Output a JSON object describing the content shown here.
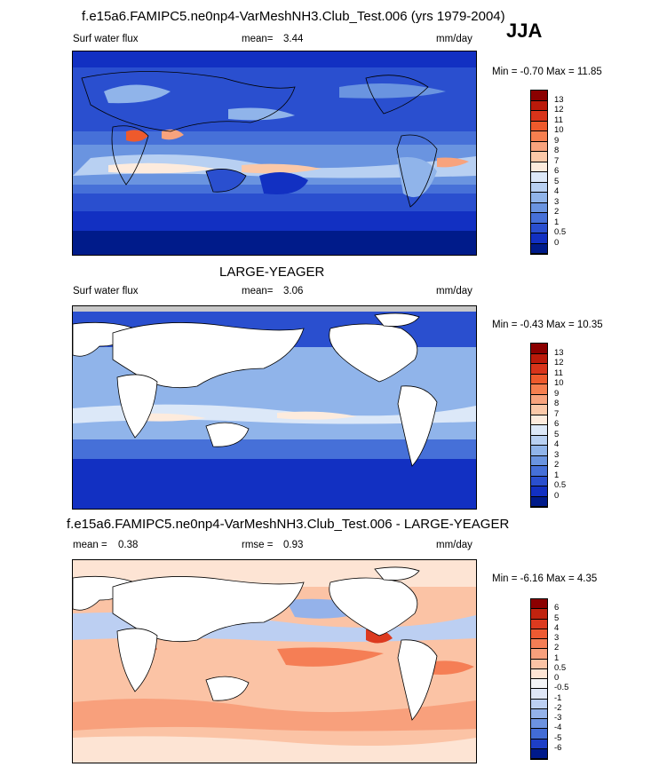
{
  "season": "JJA",
  "panels": [
    {
      "title": "f.e15a6.FAMIPC5.ne0np4-VarMeshNH3.Club_Test.006 (yrs 1979-2004)",
      "variable": "Surf water flux",
      "stat_label": "mean=",
      "stat_value": "3.44",
      "units": "mm/day",
      "minmax": "Min =  -0.70 Max =  11.85",
      "colorbar": {
        "labels": [
          "13",
          "12",
          "11",
          "10",
          "9",
          "8",
          "7",
          "6",
          "5",
          "4",
          "3",
          "2",
          "1",
          "0.5",
          "0"
        ],
        "colors": [
          "#8b0000",
          "#bb1a0a",
          "#d8341a",
          "#ee5a2c",
          "#f67f4f",
          "#f8a37d",
          "#fbc8a8",
          "#fdebdd",
          "#dce8f8",
          "#b8d0f2",
          "#90b4ea",
          "#6a94e0",
          "#4670d8",
          "#2a4fcf",
          "#1230c2",
          "#001b8a"
        ]
      }
    },
    {
      "title": "LARGE-YEAGER",
      "variable": "Surf water flux",
      "stat_label": "mean=",
      "stat_value": "3.06",
      "units": "mm/day",
      "minmax": "Min =  -0.43 Max =  10.35",
      "colorbar": {
        "labels": [
          "13",
          "12",
          "11",
          "10",
          "9",
          "8",
          "7",
          "6",
          "5",
          "4",
          "3",
          "2",
          "1",
          "0.5",
          "0"
        ],
        "colors": [
          "#8b0000",
          "#bb1a0a",
          "#d8341a",
          "#ee5a2c",
          "#f67f4f",
          "#f8a37d",
          "#fbc8a8",
          "#fdebdd",
          "#dce8f8",
          "#b8d0f2",
          "#90b4ea",
          "#6a94e0",
          "#4670d8",
          "#2a4fcf",
          "#1230c2",
          "#001b8a"
        ]
      }
    },
    {
      "title": "f.e15a6.FAMIPC5.ne0np4-VarMeshNH3.Club_Test.006 - LARGE-YEAGER",
      "stat_label": "mean =",
      "stat_value": "0.38",
      "stat2_label": "rmse =",
      "stat2_value": "0.93",
      "units": "mm/day",
      "minmax": "Min =  -6.16 Max =   4.35",
      "colorbar": {
        "labels": [
          "6",
          "5",
          "4",
          "3",
          "2",
          "1",
          "0.5",
          "0",
          "-0.5",
          "-1",
          "-2",
          "-3",
          "-4",
          "-5",
          "-6"
        ],
        "colors": [
          "#8b0000",
          "#c0230f",
          "#dc3a1f",
          "#ee5a32",
          "#f57e55",
          "#f8a07c",
          "#fbc3a5",
          "#fde4d4",
          "#f4f4f6",
          "#dfe6f6",
          "#bccff2",
          "#94b2ea",
          "#6c92e0",
          "#426cd6",
          "#1e3fc6",
          "#001a8a"
        ]
      }
    }
  ]
}
